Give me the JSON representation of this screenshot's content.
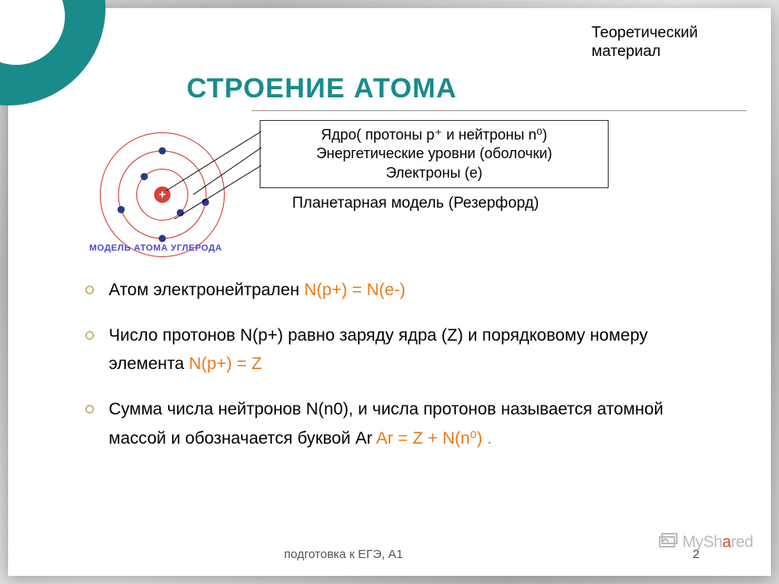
{
  "colors": {
    "teal": "#1a8b8b",
    "highlight": "#e87a1a",
    "bullet_ring": "#c9b97a",
    "atom_orbit": "#d8423a",
    "atom_electron": "#2a3a8a",
    "atom_nucleus_fill": "#d8423a",
    "atom_caption": "#4a4ad0",
    "watermark_gray": "#bbbbbb",
    "watermark_red": "#d04a3a"
  },
  "header": {
    "theory_line1": "Теоретический",
    "theory_line2": "материал",
    "title": "СТРОЕНИЕ АТОМА"
  },
  "atom": {
    "caption": "МОДЕЛЬ АТОМА УГЛЕРОДА",
    "nucleus_label": "+",
    "orbit_radii": [
      28,
      48,
      68
    ],
    "electrons": [
      {
        "r": 28,
        "angle": 135
      },
      {
        "r": 28,
        "angle": -45
      },
      {
        "r": 48,
        "angle": 90
      },
      {
        "r": 48,
        "angle": 200
      },
      {
        "r": 48,
        "angle": -10
      },
      {
        "r": 48,
        "angle": -90
      }
    ],
    "electron_radius": 4
  },
  "description": {
    "line1": "Ядро( протоны p⁺ и нейтроны n⁰)",
    "line2": "Энергетические уровни (оболочки)",
    "line3": "Электроны (е)"
  },
  "planetary": "Планетарная модель (Резерфорд)",
  "bullets": [
    {
      "pre": "Атом электронейтрален ",
      "hl": "N(p+) =  N(e-)",
      "post": ""
    },
    {
      "pre": "Число протонов N(p+) равно заряду ядра (Z) и порядковому номеру элемента ",
      "hl": "N(p+) = Z",
      "post": ""
    },
    {
      "pre": "Сумма числа нейтронов N(n0), и числа протонов называется атомной массой и обозначается буквой Ar ",
      "hl": "Ar = Z + N(n⁰) .",
      "post": ""
    }
  ],
  "footer": {
    "text": "подготовка к ЕГЭ, А1",
    "page": "2"
  },
  "watermark": {
    "pre": "MySh",
    "red": "a",
    "post": "red"
  }
}
